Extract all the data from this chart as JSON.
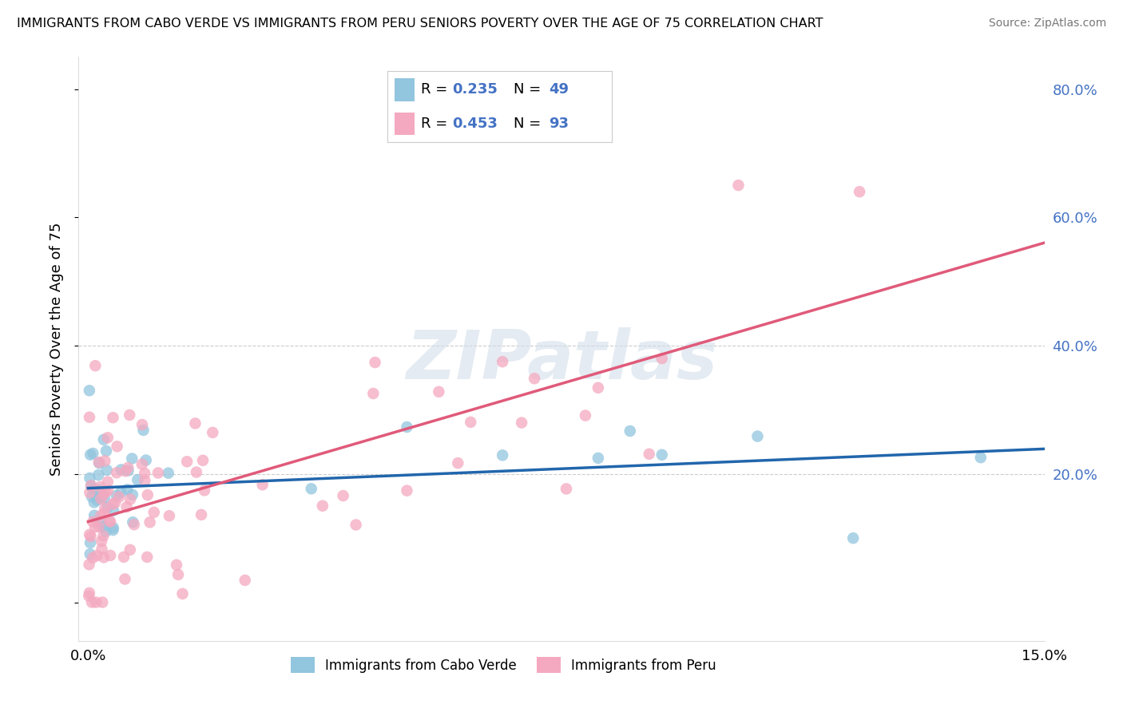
{
  "title": "IMMIGRANTS FROM CABO VERDE VS IMMIGRANTS FROM PERU SENIORS POVERTY OVER THE AGE OF 75 CORRELATION CHART",
  "source": "Source: ZipAtlas.com",
  "ylabel": "Seniors Poverty Over the Age of 75",
  "x_min": 0.0,
  "x_max": 15.0,
  "y_min": -6.0,
  "y_max": 85.0,
  "cabo_verde_color": "#92c5de",
  "peru_color": "#f4a9c0",
  "cabo_verde_line_color": "#2166ac",
  "peru_line_color": "#e05a7a",
  "cabo_verde_R": 0.235,
  "cabo_verde_N": 49,
  "peru_R": 0.453,
  "peru_N": 93,
  "cabo_verde_label": "Immigrants from Cabo Verde",
  "peru_label": "Immigrants from Peru",
  "watermark": "ZIPatlas",
  "legend_R_N_color": "#4472C4",
  "gridline_color": "#cccccc",
  "ytick_label_color": "#4472C4",
  "title_fontsize": 11.5,
  "source_fontsize": 10,
  "tick_fontsize": 13,
  "legend_fontsize": 12,
  "rn_fontsize": 13
}
